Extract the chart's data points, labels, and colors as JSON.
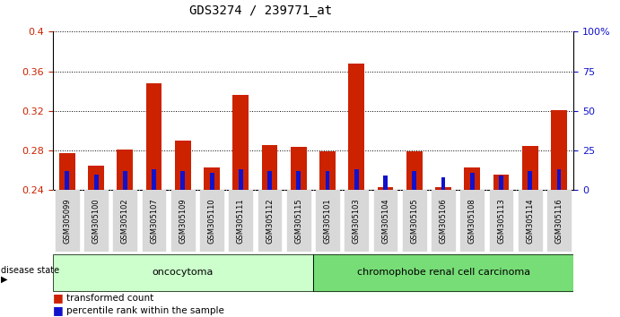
{
  "title": "GDS3274 / 239771_at",
  "samples": [
    "GSM305099",
    "GSM305100",
    "GSM305102",
    "GSM305107",
    "GSM305109",
    "GSM305110",
    "GSM305111",
    "GSM305112",
    "GSM305115",
    "GSM305101",
    "GSM305103",
    "GSM305104",
    "GSM305105",
    "GSM305106",
    "GSM305108",
    "GSM305113",
    "GSM305114",
    "GSM305116"
  ],
  "transformed_count": [
    0.277,
    0.265,
    0.281,
    0.348,
    0.29,
    0.263,
    0.336,
    0.286,
    0.284,
    0.279,
    0.368,
    0.243,
    0.279,
    0.243,
    0.263,
    0.256,
    0.285,
    0.321
  ],
  "percentile_rank": [
    12,
    10,
    12,
    13,
    12,
    11,
    13,
    12,
    12,
    12,
    13,
    9,
    12,
    8,
    11,
    9,
    12,
    13
  ],
  "baseline": 0.24,
  "ylim_left": [
    0.24,
    0.4
  ],
  "ylim_right": [
    0,
    100
  ],
  "yticks_left": [
    0.24,
    0.28,
    0.32,
    0.36,
    0.4
  ],
  "yticks_right": [
    0,
    25,
    50,
    75,
    100
  ],
  "ytick_labels_right": [
    "0",
    "25",
    "50",
    "75",
    "100%"
  ],
  "group1_label": "oncocytoma",
  "group2_label": "chromophobe renal cell carcinoma",
  "group1_count": 9,
  "group2_count": 9,
  "bar_color_red": "#cc2200",
  "bar_color_blue": "#1111cc",
  "group1_bg": "#ccffcc",
  "group2_bg": "#77dd77",
  "bar_width": 0.55,
  "blue_bar_width": 0.15,
  "disease_state_label": "disease state",
  "legend_red": "transformed count",
  "legend_blue": "percentile rank within the sample",
  "tick_bg": "#d8d8d8"
}
